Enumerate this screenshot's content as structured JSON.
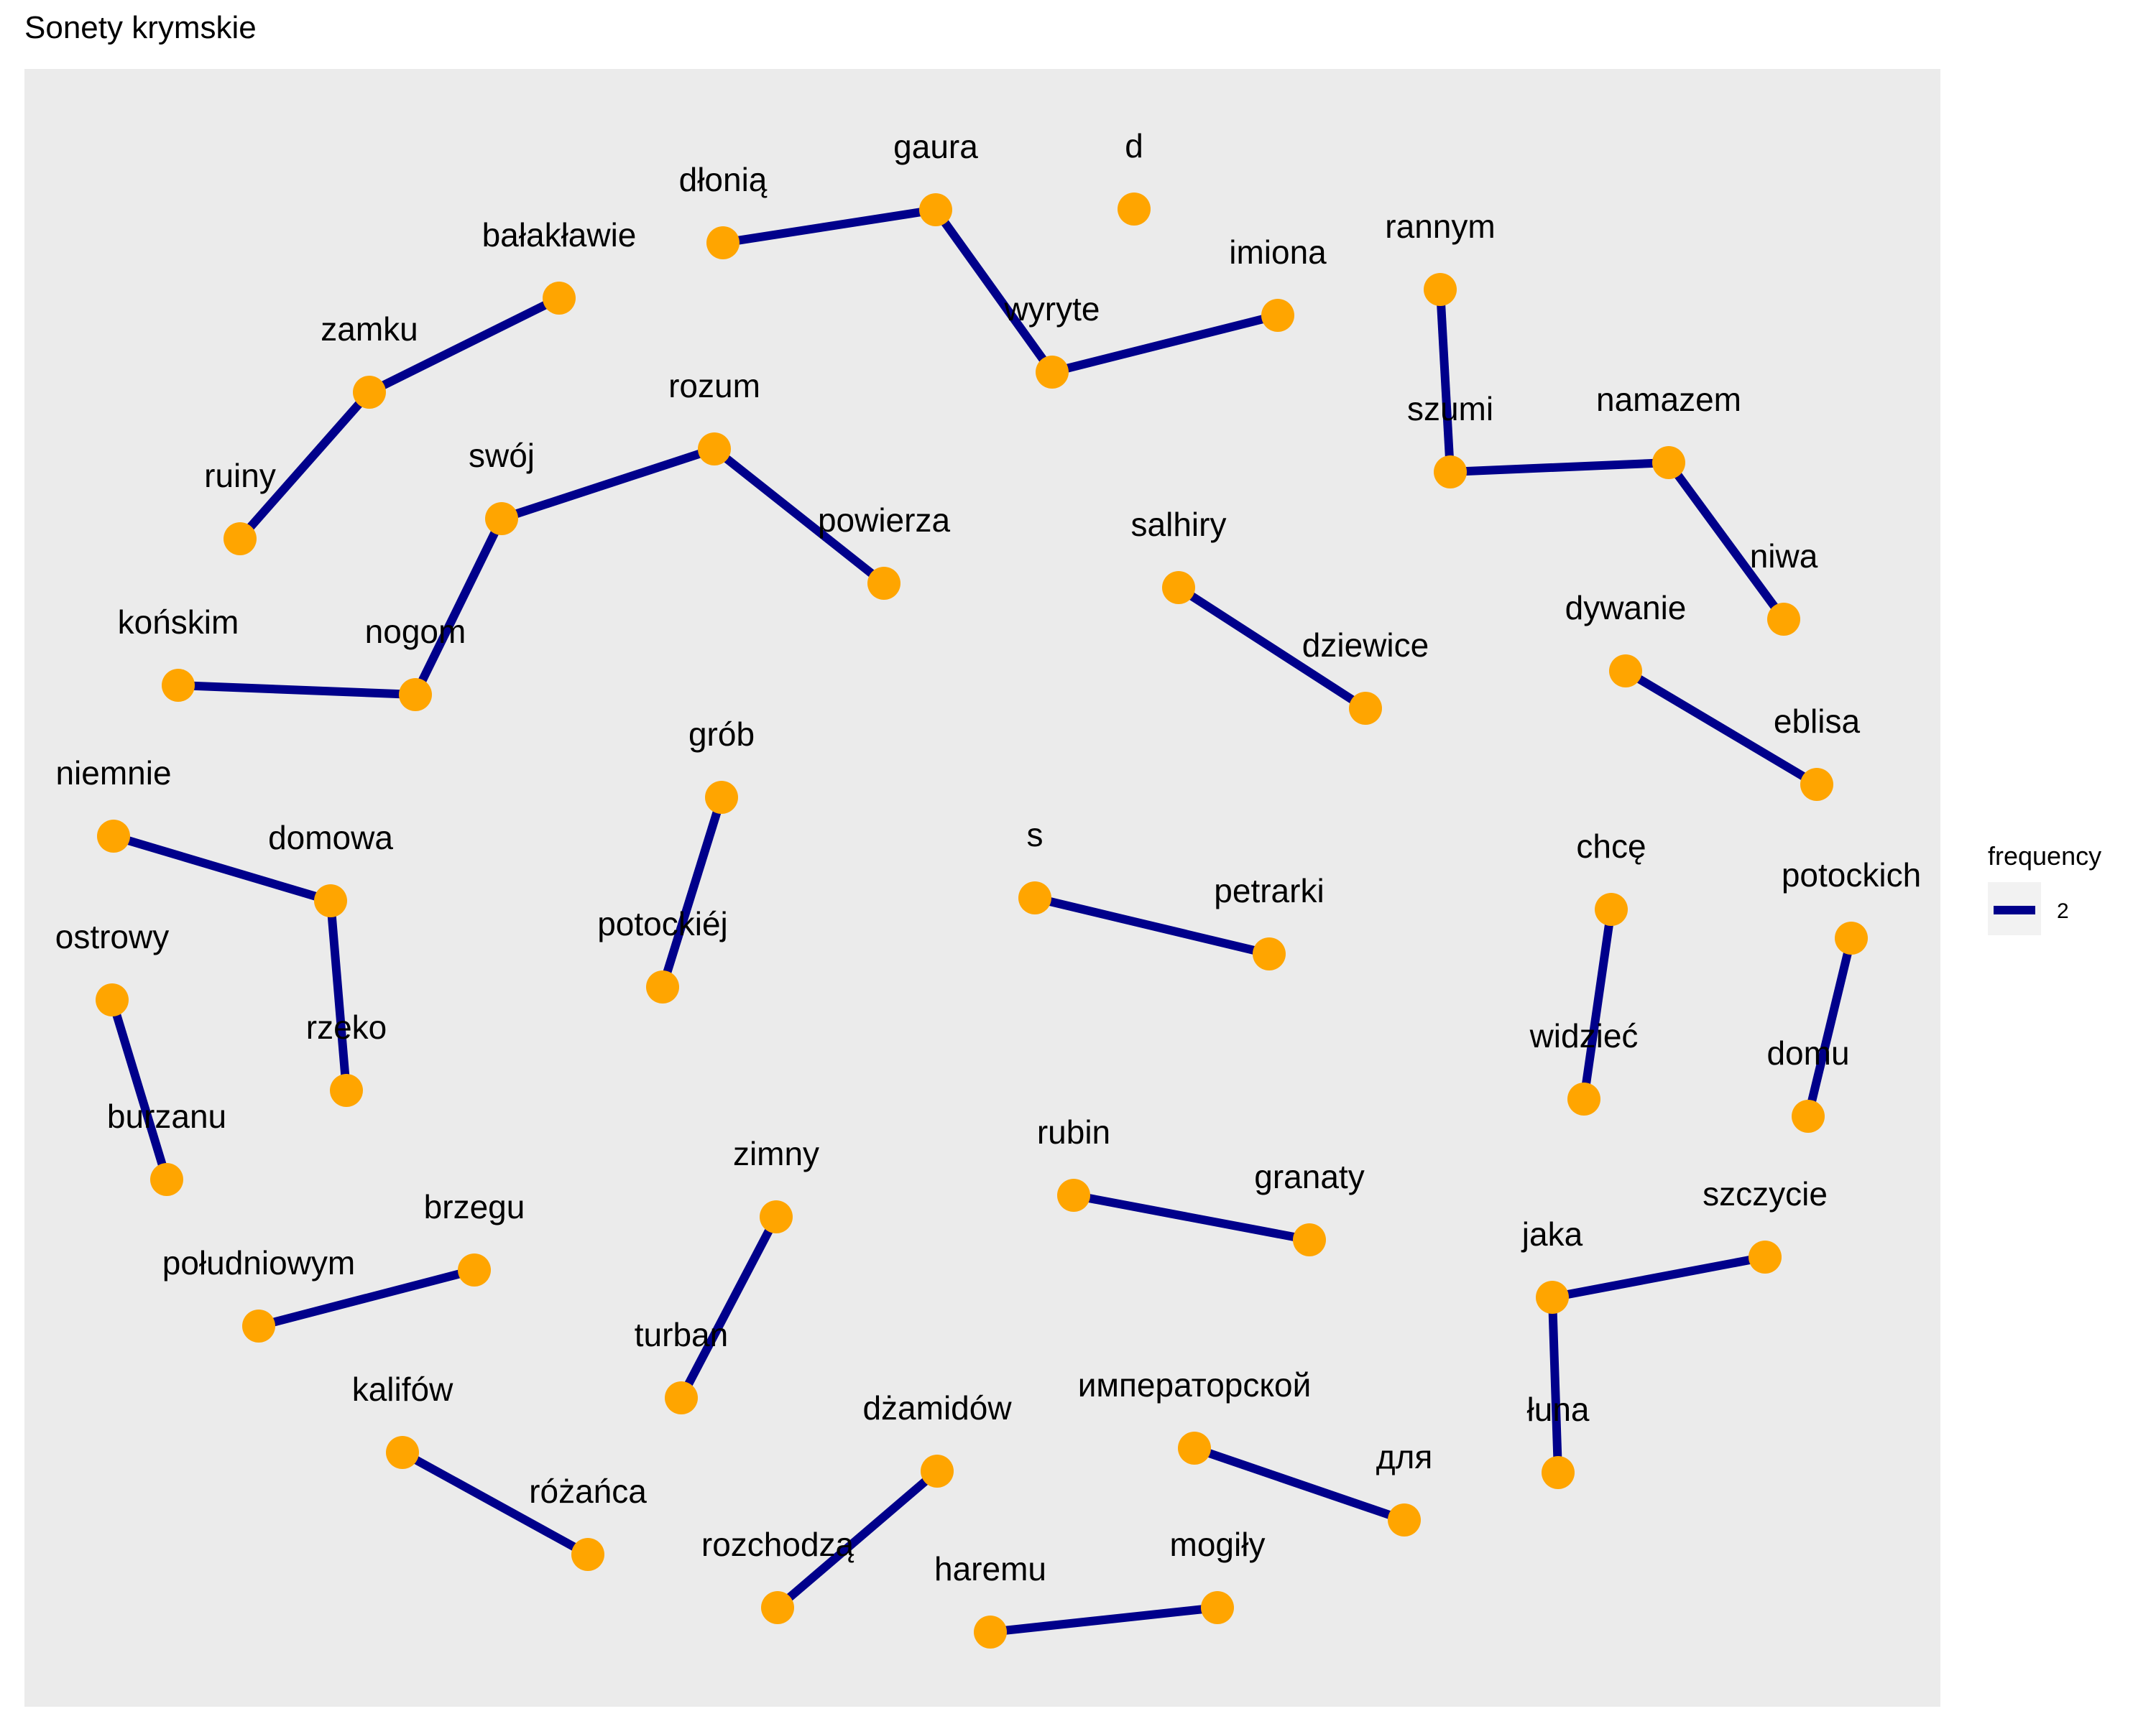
{
  "title": "Sonety krymskie",
  "colors": {
    "panel": "#EBEBEB",
    "edge": "#00008B",
    "node": "#FFA500",
    "legend_key_bg": "#F2F2F2"
  },
  "legend": {
    "title": "frequency",
    "entries": [
      {
        "label": "2"
      }
    ]
  },
  "nodes": [
    {
      "id": "dłonią",
      "label": "dłonią"
    },
    {
      "id": "gaura",
      "label": "gaura"
    },
    {
      "id": "d",
      "label": "d"
    },
    {
      "id": "imiona",
      "label": "imiona"
    },
    {
      "id": "wyryte",
      "label": "wyryte"
    },
    {
      "id": "bałakławie",
      "label": "bałakławie"
    },
    {
      "id": "zamku",
      "label": "zamku"
    },
    {
      "id": "ruiny",
      "label": "ruiny"
    },
    {
      "id": "rannym",
      "label": "rannym"
    },
    {
      "id": "szumi",
      "label": "szumi"
    },
    {
      "id": "namazem",
      "label": "namazem"
    },
    {
      "id": "niwa",
      "label": "niwa"
    },
    {
      "id": "rozum",
      "label": "rozum"
    },
    {
      "id": "swój",
      "label": "swój"
    },
    {
      "id": "powierza",
      "label": "powierza"
    },
    {
      "id": "końskim",
      "label": "końskim"
    },
    {
      "id": "nogom",
      "label": "nogom"
    },
    {
      "id": "salhiry",
      "label": "salhiry"
    },
    {
      "id": "dziewice",
      "label": "dziewice"
    },
    {
      "id": "dywanie",
      "label": "dywanie"
    },
    {
      "id": "eblisa",
      "label": "eblisa"
    },
    {
      "id": "grób",
      "label": "grób"
    },
    {
      "id": "potockiéj",
      "label": "potockiéj"
    },
    {
      "id": "niemnie",
      "label": "niemnie"
    },
    {
      "id": "domowa",
      "label": "domowa"
    },
    {
      "id": "rzeko",
      "label": "rzeko"
    },
    {
      "id": "s",
      "label": "s"
    },
    {
      "id": "petrarki",
      "label": "petrarki"
    },
    {
      "id": "chcę",
      "label": "chcę"
    },
    {
      "id": "widzieć",
      "label": "widzieć"
    },
    {
      "id": "potockich",
      "label": "potockich"
    },
    {
      "id": "domu",
      "label": "domu"
    },
    {
      "id": "ostrowy",
      "label": "ostrowy"
    },
    {
      "id": "burzanu",
      "label": "burzanu"
    },
    {
      "id": "zimny",
      "label": "zimny"
    },
    {
      "id": "turban",
      "label": "turban"
    },
    {
      "id": "rubin",
      "label": "rubin"
    },
    {
      "id": "granaty",
      "label": "granaty"
    },
    {
      "id": "brzegu",
      "label": "brzegu"
    },
    {
      "id": "południowym",
      "label": "południowym"
    },
    {
      "id": "jaka",
      "label": "jaka"
    },
    {
      "id": "szczycie",
      "label": "szczycie"
    },
    {
      "id": "łuna",
      "label": "łuna"
    },
    {
      "id": "kalifów",
      "label": "kalifów"
    },
    {
      "id": "różańca",
      "label": "różańca"
    },
    {
      "id": "dżamidów",
      "label": "dżamidów"
    },
    {
      "id": "rozchodzą",
      "label": "rozchodzą"
    },
    {
      "id": "императорской",
      "label": "императорской"
    },
    {
      "id": "для",
      "label": "для"
    },
    {
      "id": "haremu",
      "label": "haremu"
    },
    {
      "id": "mogiły",
      "label": "mogiły"
    }
  ],
  "edges": [
    {
      "from": "dłonią",
      "to": "gaura",
      "frequency": 2
    },
    {
      "from": "gaura",
      "to": "wyryte",
      "frequency": 2
    },
    {
      "from": "wyryte",
      "to": "imiona",
      "frequency": 2
    },
    {
      "from": "bałakławie",
      "to": "zamku",
      "frequency": 2
    },
    {
      "from": "zamku",
      "to": "ruiny",
      "frequency": 2
    },
    {
      "from": "rannym",
      "to": "szumi",
      "frequency": 2
    },
    {
      "from": "szumi",
      "to": "namazem",
      "frequency": 2
    },
    {
      "from": "namazem",
      "to": "niwa",
      "frequency": 2
    },
    {
      "from": "swój",
      "to": "rozum",
      "frequency": 2
    },
    {
      "from": "rozum",
      "to": "powierza",
      "frequency": 2
    },
    {
      "from": "swój",
      "to": "nogom",
      "frequency": 2
    },
    {
      "from": "końskim",
      "to": "nogom",
      "frequency": 2
    },
    {
      "from": "salhiry",
      "to": "dziewice",
      "frequency": 2
    },
    {
      "from": "dywanie",
      "to": "eblisa",
      "frequency": 2
    },
    {
      "from": "grób",
      "to": "potockiéj",
      "frequency": 2
    },
    {
      "from": "niemnie",
      "to": "domowa",
      "frequency": 2
    },
    {
      "from": "domowa",
      "to": "rzeko",
      "frequency": 2
    },
    {
      "from": "s",
      "to": "petrarki",
      "frequency": 2
    },
    {
      "from": "chcę",
      "to": "widzieć",
      "frequency": 2
    },
    {
      "from": "potockich",
      "to": "domu",
      "frequency": 2
    },
    {
      "from": "ostrowy",
      "to": "burzanu",
      "frequency": 2
    },
    {
      "from": "zimny",
      "to": "turban",
      "frequency": 2
    },
    {
      "from": "rubin",
      "to": "granaty",
      "frequency": 2
    },
    {
      "from": "południowym",
      "to": "brzegu",
      "frequency": 2
    },
    {
      "from": "jaka",
      "to": "szczycie",
      "frequency": 2
    },
    {
      "from": "jaka",
      "to": "łuna",
      "frequency": 2
    },
    {
      "from": "kalifów",
      "to": "różańca",
      "frequency": 2
    },
    {
      "from": "dżamidów",
      "to": "rozchodzą",
      "frequency": 2
    },
    {
      "from": "императорской",
      "to": "для",
      "frequency": 2
    },
    {
      "from": "haremu",
      "to": "mogiły",
      "frequency": 2
    }
  ]
}
